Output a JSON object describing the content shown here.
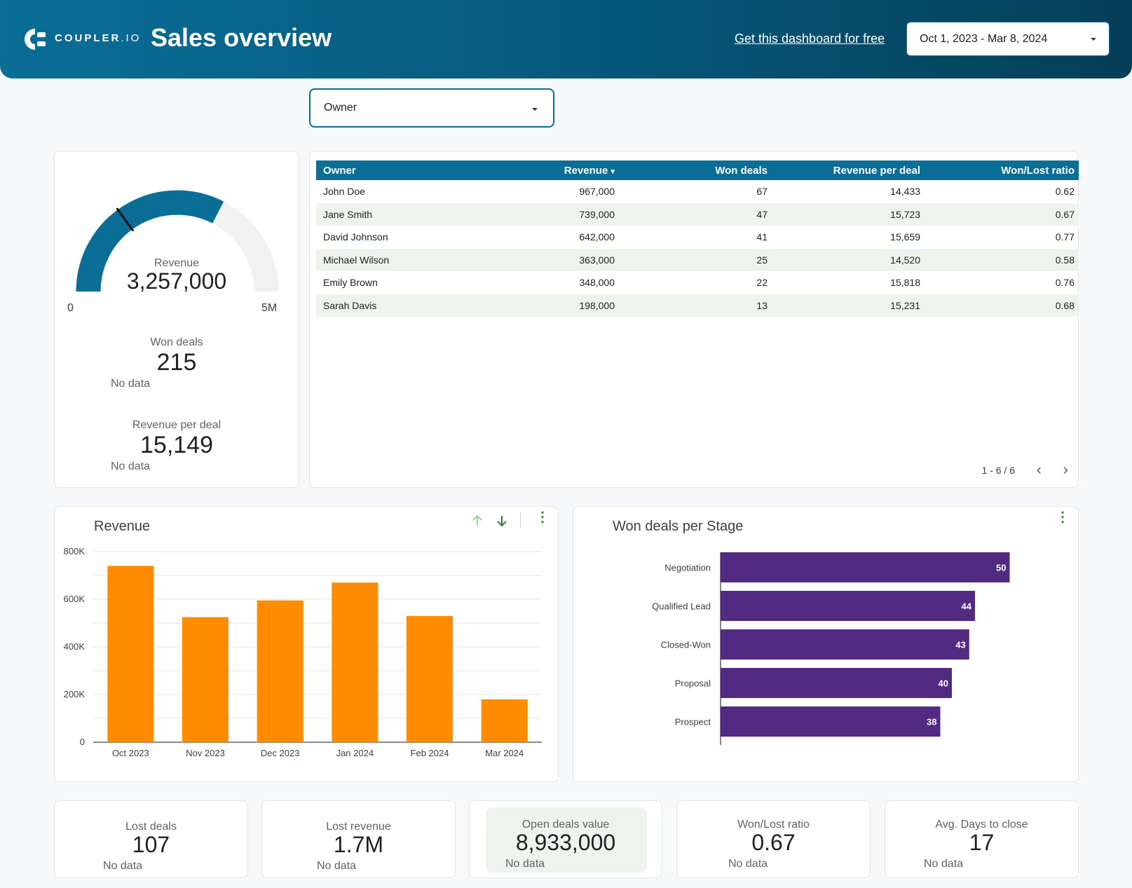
{
  "header": {
    "logo_text": "COUPLER",
    "logo_suffix": ".IO",
    "title": "Sales overview",
    "cta_link": "Get this dashboard for free",
    "date_range": "Oct 1, 2023 - Mar 8, 2024"
  },
  "filter": {
    "owner_label": "Owner"
  },
  "scorecard": {
    "gauge": {
      "label": "Revenue",
      "value": "3,257,000",
      "min_label": "0",
      "max_label": "5M",
      "value_number": 3257000,
      "max_number": 5000000,
      "target_fraction": 0.3
    },
    "won_deals": {
      "label": "Won deals",
      "value": "215",
      "compare": "No data"
    },
    "revenue_per_deal": {
      "label": "Revenue per deal",
      "value": "15,149",
      "compare": "No data"
    }
  },
  "owner_table": {
    "columns": [
      "Owner",
      "Revenue",
      "Won deals",
      "Revenue per deal",
      "Won/Lost ratio"
    ],
    "sort_indicator": "▾",
    "rows": [
      [
        "John Doe",
        "967,000",
        "67",
        "14,433",
        "0.62"
      ],
      [
        "Jane Smith",
        "739,000",
        "47",
        "15,723",
        "0.67"
      ],
      [
        "David Johnson",
        "642,000",
        "41",
        "15,659",
        "0.77"
      ],
      [
        "Michael Wilson",
        "363,000",
        "25",
        "14,520",
        "0.58"
      ],
      [
        "Emily Brown",
        "348,000",
        "22",
        "15,818",
        "0.76"
      ],
      [
        "Sarah Davis",
        "198,000",
        "13",
        "15,231",
        "0.68"
      ]
    ],
    "pagination": "1 - 6 / 6"
  },
  "revenue_chart": {
    "title": "Revenue",
    "chart_data": {
      "type": "bar",
      "title": "Revenue",
      "categories": [
        "Oct 2023",
        "Nov 2023",
        "Dec 2023",
        "Jan 2024",
        "Feb 2024",
        "Mar 2024"
      ],
      "values": [
        740000,
        525000,
        595000,
        670000,
        530000,
        180000
      ],
      "ylim": [
        0,
        800000
      ],
      "yticks": [
        "0",
        "200K",
        "400K",
        "600K",
        "800K"
      ],
      "color": "#ff8c00",
      "grid": true
    }
  },
  "stage_chart": {
    "title": "Won deals per Stage",
    "chart_data": {
      "type": "bar",
      "orientation": "horizontal",
      "title": "Won deals per Stage",
      "categories": [
        "Negotiation",
        "Qualified Lead",
        "Closed-Won",
        "Proposal",
        "Prospect"
      ],
      "values": [
        50,
        44,
        43,
        40,
        38
      ],
      "color": "#522a82",
      "data_labels": true
    }
  },
  "bottom_kpis": [
    {
      "label": "Lost deals",
      "value": "107",
      "compare": "No data"
    },
    {
      "label": "Lost revenue",
      "value": "1.7M",
      "compare": "No data"
    },
    {
      "label": "Open deals value",
      "value": "8,933,000",
      "compare": "No data"
    },
    {
      "label": "Won/Lost ratio",
      "value": "0.67",
      "compare": "No data"
    },
    {
      "label": "Avg. Days to close",
      "value": "17",
      "compare": "No data"
    }
  ],
  "colors": {
    "brand": "#0a6e97",
    "bar_revenue": "#ff8c00",
    "bar_stage": "#522a82",
    "gauge_track": "#f1f1f1"
  }
}
